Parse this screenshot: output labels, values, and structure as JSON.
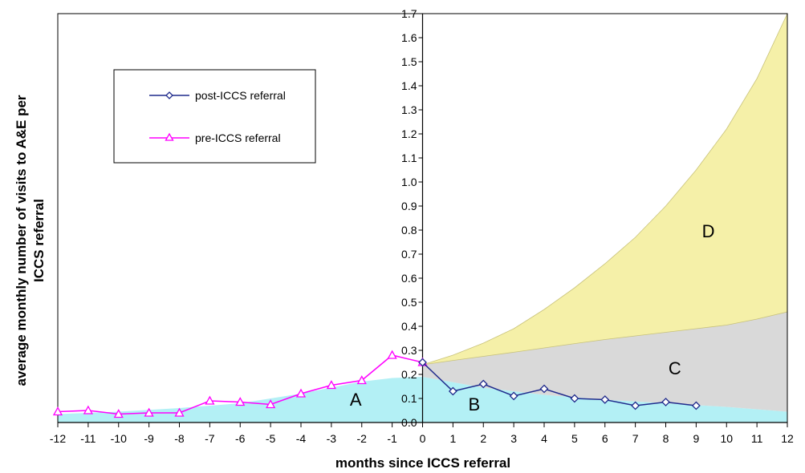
{
  "chart_data": {
    "type": "area",
    "xlabel": "months since ICCS referral",
    "ylabel": "average monthly number of visits to A&E per ICCS referral",
    "xlim": [
      -12,
      12
    ],
    "ylim": [
      0,
      1.7
    ],
    "x_ticks": [
      "-12",
      "-11",
      "-10",
      "-9",
      "-8",
      "-7",
      "-6",
      "-5",
      "-4",
      "-3",
      "-2",
      "-1",
      "0",
      "1",
      "2",
      "3",
      "4",
      "5",
      "6",
      "7",
      "8",
      "9",
      "10",
      "11",
      "12"
    ],
    "y_ticks": [
      "0.0",
      "0.1",
      "0.2",
      "0.3",
      "0.4",
      "0.5",
      "0.6",
      "0.7",
      "0.8",
      "0.9",
      "1.0",
      "1.1",
      "1.2",
      "1.3",
      "1.4",
      "1.5",
      "1.6",
      "1.7"
    ],
    "legend_position": "top-left",
    "colors": {
      "pre": "#ff00ff",
      "post": "#1f2a8c",
      "region_A": "#b3f0f5",
      "region_B": "#b3f0f5",
      "region_C": "#d9d9d9",
      "region_D": "#f5f0a8"
    },
    "series": [
      {
        "name": "post-ICCS referral",
        "marker": "diamond",
        "x": [
          0,
          1,
          2,
          3,
          4,
          5,
          6,
          7,
          8,
          9
        ],
        "values": [
          0.25,
          0.13,
          0.16,
          0.11,
          0.14,
          0.1,
          0.095,
          0.07,
          0.085,
          0.07
        ]
      },
      {
        "name": "pre-ICCS referral",
        "marker": "triangle",
        "x": [
          -12,
          -11,
          -10,
          -9,
          -8,
          -7,
          -6,
          -5,
          -4,
          -3,
          -2,
          -1,
          0
        ],
        "values": [
          0.045,
          0.05,
          0.035,
          0.04,
          0.04,
          0.09,
          0.085,
          0.075,
          0.12,
          0.155,
          0.175,
          0.28,
          0.25
        ]
      }
    ],
    "regions": [
      {
        "label": "A",
        "label_at": [
          -2.2,
          0.07
        ],
        "x": [
          -12,
          -10,
          -8,
          -6,
          -4,
          -2,
          -1,
          0
        ],
        "upper": [
          0.035,
          0.045,
          0.06,
          0.08,
          0.12,
          0.17,
          0.185,
          0.19
        ]
      },
      {
        "label": "B",
        "label_at": [
          1.7,
          0.05
        ],
        "x": [
          0,
          2,
          4,
          6,
          8,
          10,
          12
        ],
        "upper": [
          0.19,
          0.145,
          0.115,
          0.095,
          0.08,
          0.065,
          0.045
        ]
      },
      {
        "label": "C",
        "label_at": [
          8.3,
          0.2
        ],
        "x": [
          0,
          2,
          4,
          6,
          8,
          10,
          12
        ],
        "lower": [
          0.19,
          0.145,
          0.115,
          0.095,
          0.08,
          0.065,
          0.045
        ],
        "upper": [
          0.24,
          0.275,
          0.31,
          0.345,
          0.375,
          0.405,
          0.46
        ]
      },
      {
        "label": "D",
        "label_at": [
          9.4,
          0.77
        ],
        "x": [
          0,
          1,
          2,
          3,
          4,
          5,
          6,
          7,
          8,
          9,
          10,
          11,
          12
        ],
        "lower": [
          0.24,
          0.258,
          0.275,
          0.292,
          0.31,
          0.328,
          0.345,
          0.36,
          0.375,
          0.39,
          0.405,
          0.43,
          0.46
        ],
        "upper": [
          0.24,
          0.28,
          0.33,
          0.39,
          0.47,
          0.56,
          0.66,
          0.77,
          0.9,
          1.05,
          1.22,
          1.43,
          1.7
        ]
      }
    ]
  }
}
